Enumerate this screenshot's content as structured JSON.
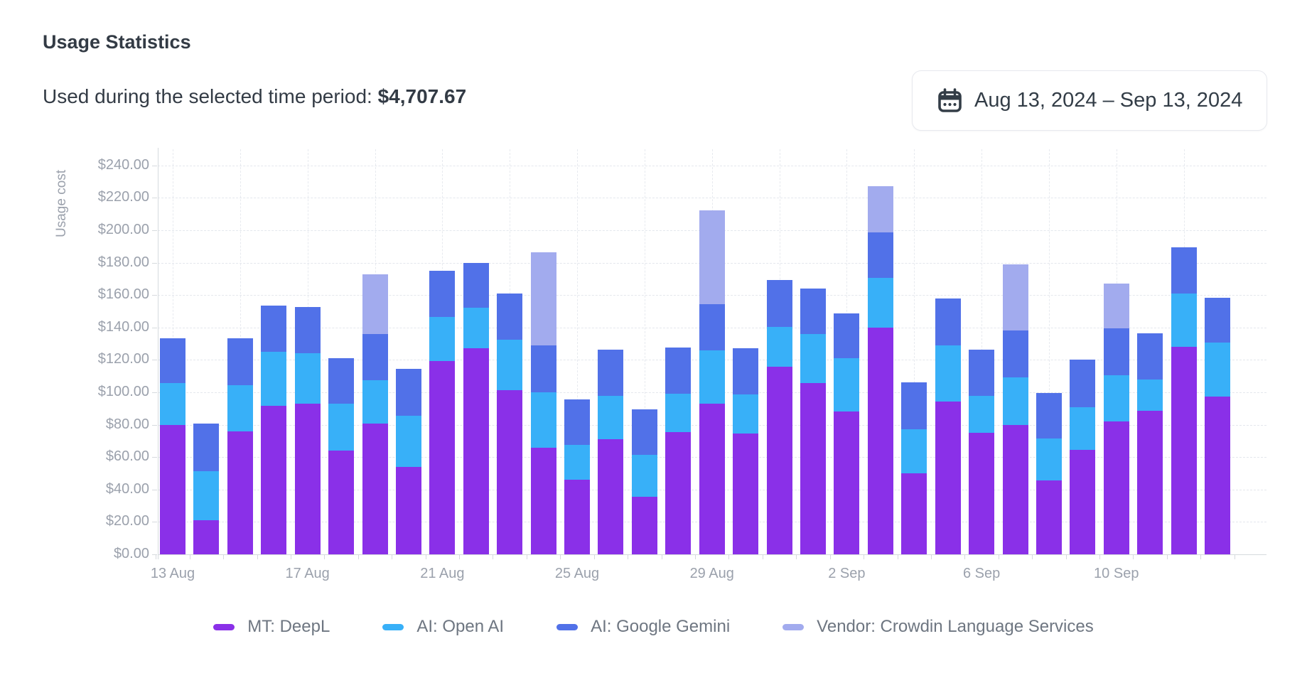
{
  "header": {
    "title": "Usage Statistics",
    "subtitle_label": "Used during the selected time period: ",
    "subtitle_value": "$4,707.67",
    "date_range": "Aug 13, 2024 – Sep 13, 2024"
  },
  "chart_data": {
    "type": "bar",
    "stacked": true,
    "title": "",
    "xlabel": "",
    "ylabel": "Usage cost",
    "ylim": [
      0,
      250
    ],
    "grid": true,
    "legend_position": "bottom",
    "y_tick_values": [
      0,
      20,
      40,
      60,
      80,
      100,
      120,
      140,
      160,
      180,
      200,
      220,
      240
    ],
    "y_tick_labels": [
      "$0.00",
      "$20.00",
      "$40.00",
      "$60.00",
      "$80.00",
      "$100.00",
      "$120.00",
      "$140.00",
      "$160.00",
      "$180.00",
      "$200.00",
      "$220.00",
      "$240.00"
    ],
    "x_tick_indices": [
      0,
      4,
      8,
      12,
      16,
      20,
      24,
      28
    ],
    "x_tick_labels": [
      "13 Aug",
      "17 Aug",
      "21 Aug",
      "25 Aug",
      "29 Aug",
      "2 Sep",
      "6 Sep",
      "10 Sep"
    ],
    "categories": [
      "13 Aug",
      "14 Aug",
      "15 Aug",
      "16 Aug",
      "17 Aug",
      "18 Aug",
      "19 Aug",
      "20 Aug",
      "21 Aug",
      "22 Aug",
      "23 Aug",
      "24 Aug",
      "25 Aug",
      "26 Aug",
      "27 Aug",
      "28 Aug",
      "29 Aug",
      "30 Aug",
      "31 Aug",
      "1 Sep",
      "2 Sep",
      "3 Sep",
      "4 Sep",
      "5 Sep",
      "6 Sep",
      "7 Sep",
      "8 Sep",
      "9 Sep",
      "10 Sep",
      "11 Sep",
      "12 Sep",
      "13 Sep"
    ],
    "series": [
      {
        "name": "MT: DeepL",
        "color": "#8a30e8",
        "values": [
          80,
          21,
          76,
          91.5,
          93,
          64,
          80.5,
          54,
          119.5,
          127,
          101.5,
          66,
          46,
          71,
          35.5,
          75.5,
          93,
          74.5,
          116,
          105.5,
          88,
          140,
          50,
          94.5,
          75,
          80,
          45.5,
          64.5,
          82,
          88.5,
          128,
          97.5
        ]
      },
      {
        "name": "AI: Open AI",
        "color": "#38b0f8",
        "values": [
          25.5,
          30.5,
          28.5,
          33.5,
          31,
          29,
          27,
          31.5,
          27,
          25,
          31,
          34,
          21.5,
          27,
          26,
          23.5,
          33,
          24,
          24.5,
          30.5,
          33,
          30.5,
          27,
          34.5,
          23,
          29,
          26,
          26.5,
          28.5,
          19.5,
          33,
          33
        ]
      },
      {
        "name": "AI: Google Gemini",
        "color": "#5171e8",
        "values": [
          28,
          29,
          29,
          28.5,
          28.5,
          28,
          28.5,
          29,
          28.5,
          28,
          28.5,
          29,
          28,
          28.5,
          28,
          28.5,
          28.5,
          28.5,
          29,
          28,
          27.5,
          28,
          29,
          29,
          28.5,
          29,
          28,
          29,
          29,
          28.5,
          28.5,
          28
        ]
      },
      {
        "name": "Vendor: Crowdin Language Services",
        "color": "#a2abee",
        "values": [
          0,
          0,
          0,
          0,
          0,
          0,
          37,
          0,
          0,
          0,
          0,
          57.5,
          0,
          0,
          0,
          0,
          58,
          0,
          0,
          0,
          0,
          28.5,
          0,
          0,
          0,
          41,
          0,
          0,
          27.5,
          0,
          0,
          0
        ]
      }
    ]
  }
}
